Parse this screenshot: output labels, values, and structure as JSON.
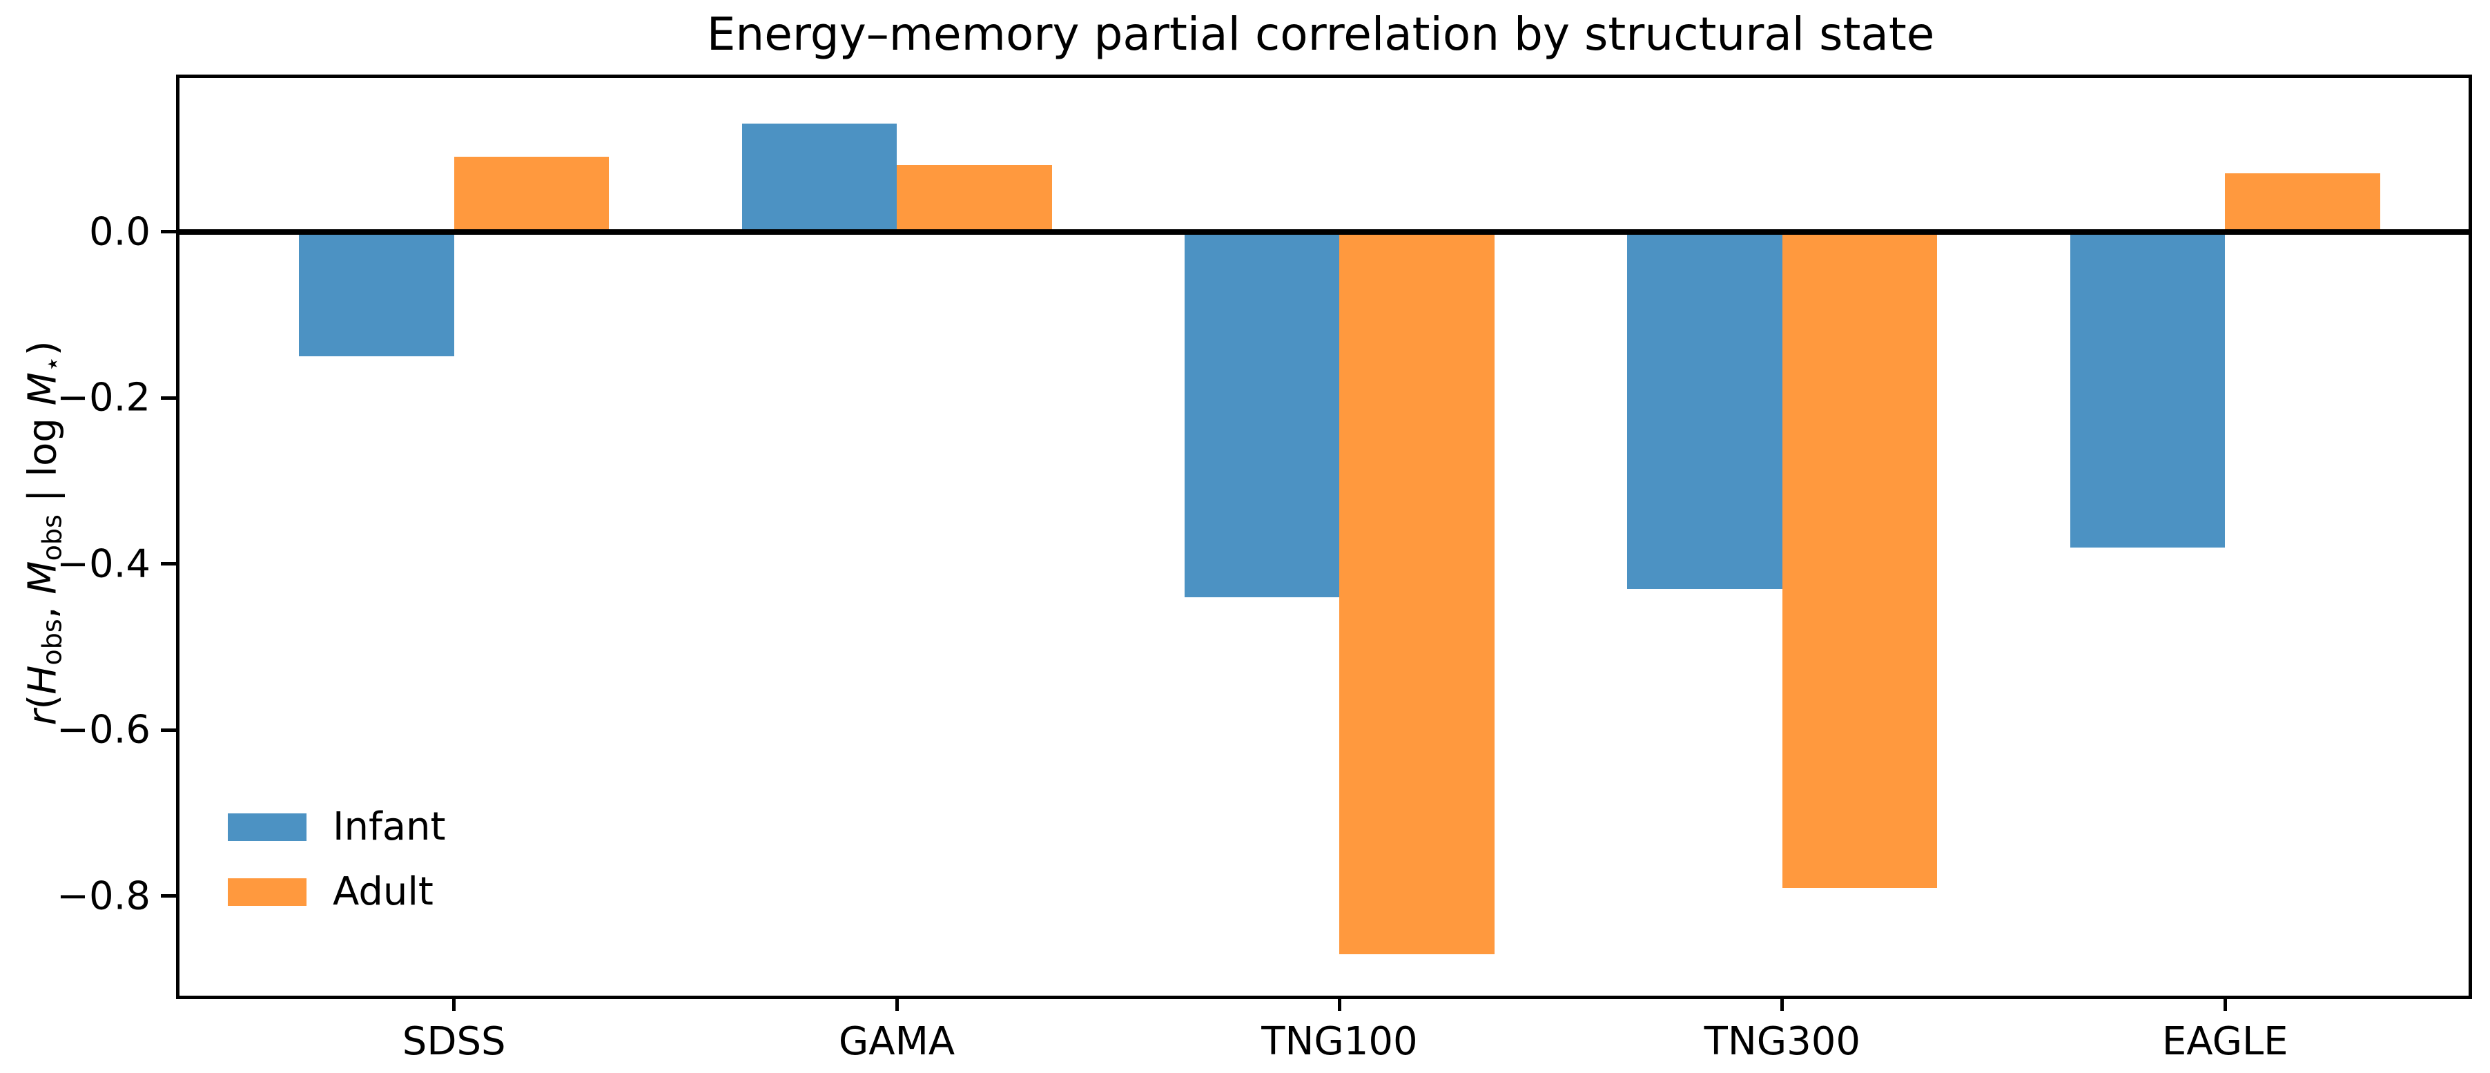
{
  "title": "Energy–memory partial correlation by structural state",
  "ylabel": {
    "plain": "r(H_obs, M_obs | log M_⋆)",
    "parts": {
      "r": "r",
      "open_paren": "(",
      "H": "H",
      "H_sub": "obs",
      "comma": ", ",
      "M1": "M",
      "M1_sub": "obs",
      "mid_bar": " | ",
      "log": "log ",
      "M2": "M",
      "M2_sub": "⋆",
      "close_paren": ")"
    }
  },
  "chart_data": {
    "type": "bar",
    "title": "Energy–memory partial correlation by structural state",
    "xlabel": "",
    "ylabel": "r(H_obs, M_obs | log M_⋆)",
    "categories": [
      "SDSS",
      "GAMA",
      "TNG100",
      "TNG300",
      "EAGLE"
    ],
    "series": [
      {
        "name": "Infant",
        "color": "#4C92C3",
        "values": [
          -0.15,
          0.13,
          -0.44,
          -0.43,
          -0.38
        ]
      },
      {
        "name": "Adult",
        "color": "#FF993E",
        "values": [
          0.09,
          0.08,
          -0.87,
          -0.79,
          0.07
        ]
      }
    ],
    "yticks": [
      {
        "label": "0.0",
        "value": 0.0
      },
      {
        "label": "−0.2",
        "value": -0.2
      },
      {
        "label": "−0.4",
        "value": -0.4
      },
      {
        "label": "−0.6",
        "value": -0.6
      },
      {
        "label": "−0.8",
        "value": -0.8
      }
    ],
    "ylim": [
      -0.92,
      0.185
    ],
    "xlim": [
      -0.62,
      4.55
    ],
    "bar_width": 0.35,
    "zero_line": true,
    "grid": false,
    "legend_position": "lower left"
  }
}
